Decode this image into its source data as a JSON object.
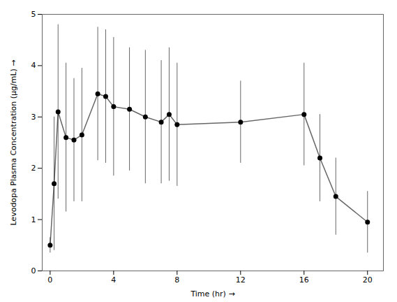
{
  "chart_data": {
    "type": "line",
    "x": [
      0,
      0.25,
      0.5,
      1,
      1.5,
      2,
      3,
      3.5,
      4,
      5,
      6,
      7,
      7.5,
      8,
      12,
      16,
      17,
      18,
      20
    ],
    "values": [
      0.5,
      1.7,
      3.1,
      2.6,
      2.55,
      2.65,
      3.45,
      3.4,
      3.2,
      3.15,
      3.0,
      2.9,
      3.05,
      2.85,
      2.9,
      3.05,
      2.2,
      1.45,
      0.95
    ],
    "sd": [
      0.15,
      1.3,
      1.7,
      1.45,
      1.2,
      1.3,
      1.3,
      1.3,
      1.35,
      1.2,
      1.3,
      1.2,
      1.3,
      1.2,
      0.8,
      1.0,
      0.85,
      0.75,
      0.6
    ],
    "xlabel": "Time (hr)",
    "ylabel": "Levodopa Plasma Concentration (µg/mL)",
    "xlim": [
      -0.5,
      21
    ],
    "ylim": [
      0,
      5
    ],
    "xticks": [
      0,
      4,
      8,
      12,
      16,
      20
    ],
    "yticks": [
      0,
      1,
      2,
      3,
      4,
      5
    ],
    "marker": "o",
    "line_style": "solid",
    "grid": false
  }
}
